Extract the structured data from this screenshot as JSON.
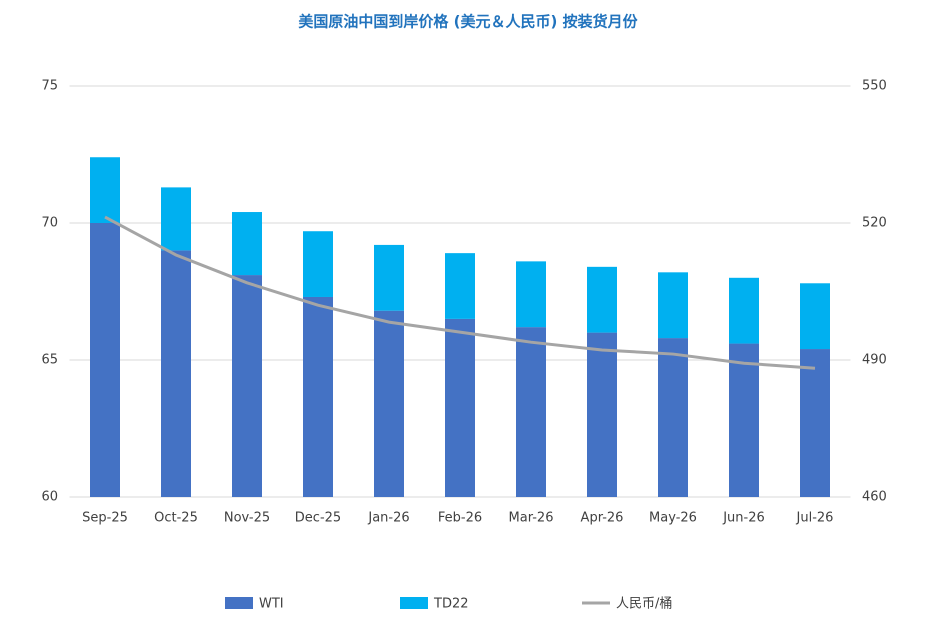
{
  "chart_data": {
    "type": "bar",
    "title": "美国原油中国到岸价格 (美元＆人民币) 按装货月份",
    "categories": [
      "Sep-25",
      "Oct-25",
      "Nov-25",
      "Dec-25",
      "Jan-26",
      "Feb-26",
      "Mar-26",
      "Apr-26",
      "May-26",
      "Jun-26",
      "Jul-26"
    ],
    "series": [
      {
        "name": "WTI",
        "color": "#4472c4",
        "values": [
          70.0,
          69.0,
          68.1,
          67.3,
          66.8,
          66.5,
          66.2,
          66.0,
          65.8,
          65.6,
          65.4
        ]
      },
      {
        "name": "TD22",
        "color": "#00b0f0",
        "values": [
          2.4,
          2.3,
          2.3,
          2.4,
          2.4,
          2.4,
          2.4,
          2.4,
          2.4,
          2.4,
          2.4
        ]
      },
      {
        "name": "人民币/桶",
        "color": "#a5a5a5",
        "type": "line",
        "axis": "y2",
        "values": [
          521.3,
          513.0,
          506.9,
          502.0,
          498.3,
          496.1,
          493.9,
          492.2,
          491.3,
          489.3,
          488.2
        ]
      }
    ],
    "stacked": true,
    "ylim": [
      60,
      75
    ],
    "yticks": [
      60,
      65,
      70,
      75
    ],
    "y2lim": [
      460,
      550
    ],
    "y2ticks": [
      460,
      490,
      520,
      550
    ],
    "grid": true,
    "legend": "bottom"
  }
}
